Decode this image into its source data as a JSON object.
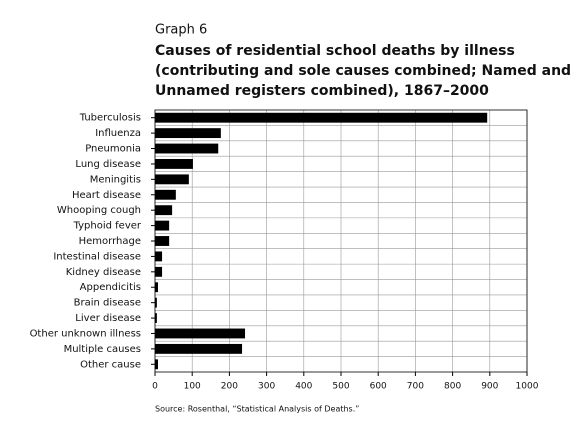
{
  "chart_data": {
    "type": "bar",
    "orientation": "horizontal",
    "label": "Graph 6",
    "title": [
      "Causes of residential school deaths by illness",
      "(contributing and sole causes combined; Named and",
      "Unnamed registers combined), 1867–2000"
    ],
    "source": "Source: Rosenthal, “Statistical Analysis of Deaths.”",
    "categories": [
      "Tuberculosis",
      "Influenza",
      "Pneumonia",
      "Lung disease",
      "Meningitis",
      "Heart disease",
      "Whooping cough",
      "Typhoid fever",
      "Hemorrhage",
      "Intestinal disease",
      "Kidney disease",
      "Appendicitis",
      "Brain disease",
      "Liver disease",
      "Other unknown illness",
      "Multiple causes",
      "Other cause"
    ],
    "values": [
      893,
      177,
      170,
      102,
      91,
      56,
      46,
      38,
      38,
      19,
      19,
      8,
      5,
      5,
      242,
      234,
      8
    ],
    "color": "#000000",
    "xlim": [
      0,
      1000
    ],
    "xticks": [
      0,
      100,
      200,
      300,
      400,
      500,
      600,
      700,
      800,
      900,
      1000
    ],
    "grid": true
  }
}
